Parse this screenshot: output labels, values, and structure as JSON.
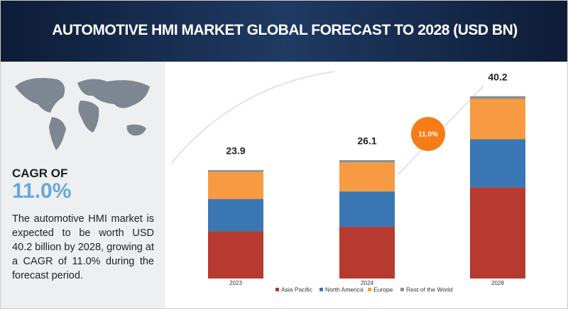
{
  "chart_data": {
    "type": "stacked-bar",
    "title": "AUTOMOTIVE HMI MARKET GLOBAL FORECAST TO 2028 (USD BN)",
    "cagr_label": "CAGR OF",
    "cagr_value": "11.0%",
    "description": "The automotive HMI market is expected to be worth USD 40.2 billion by 2028, growing at a CAGR of 11.0% during the forecast period.",
    "badge": "11.0%",
    "categories": [
      "2023",
      "2024",
      "2028"
    ],
    "totals": [
      23.9,
      26.1,
      40.2
    ],
    "series": [
      {
        "name": "Asia Pacific",
        "color": "#b63a2f",
        "values": [
          10.4,
          11.4,
          20.1
        ]
      },
      {
        "name": "North America",
        "color": "#3a76b4",
        "values": [
          7.1,
          7.8,
          10.6
        ]
      },
      {
        "name": "Europe",
        "color": "#f79a41",
        "values": [
          6.0,
          6.4,
          8.9
        ]
      },
      {
        "name": "Rest of the World",
        "color": "#8e8e8e",
        "values": [
          0.4,
          0.5,
          0.6
        ]
      }
    ]
  }
}
